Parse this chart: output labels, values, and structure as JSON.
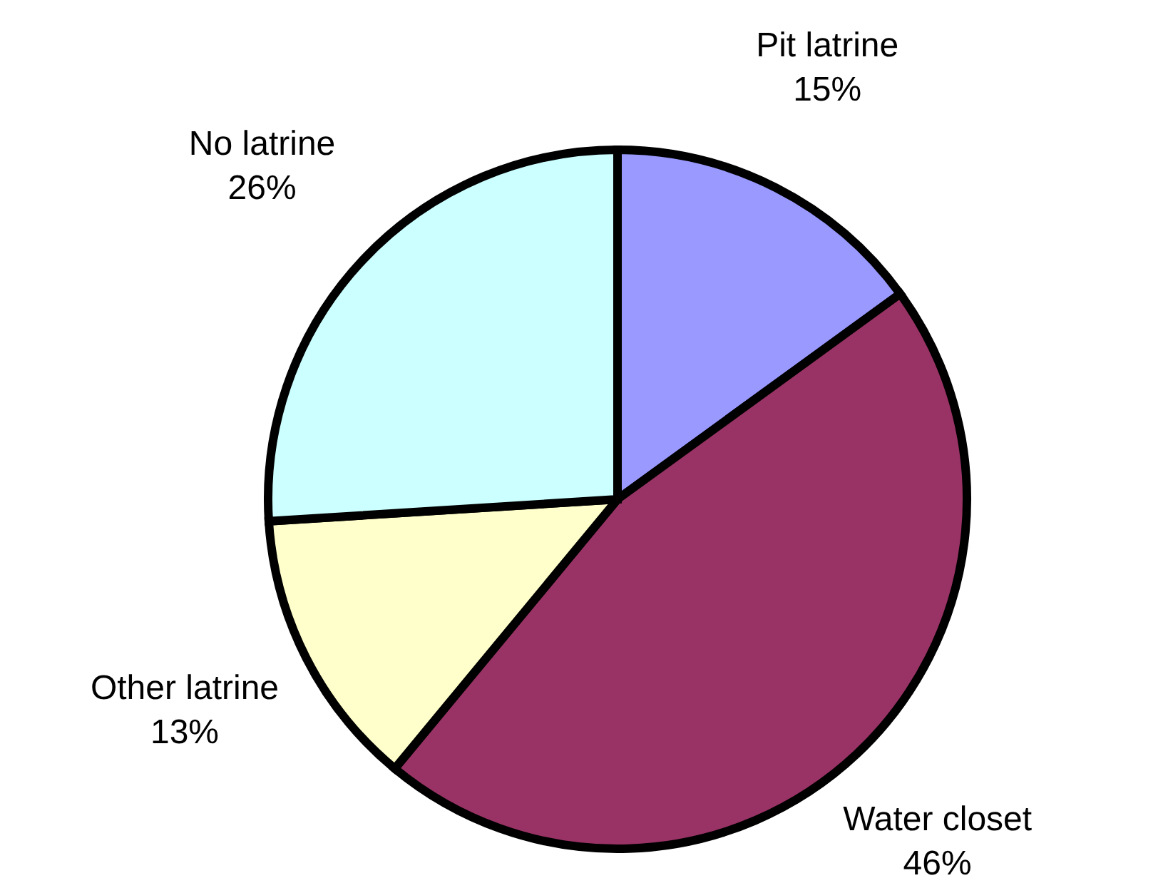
{
  "chart_data": {
    "type": "pie",
    "categories": [
      "Pit latrine",
      "Water closet",
      "Other latrine",
      "No latrine"
    ],
    "values": [
      15,
      46,
      13,
      26
    ],
    "colors": [
      "#9999ff",
      "#993366",
      "#ffffcc",
      "#ccffff"
    ],
    "value_labels": [
      "15%",
      "46%",
      "13%",
      "26%"
    ],
    "legend": false
  }
}
